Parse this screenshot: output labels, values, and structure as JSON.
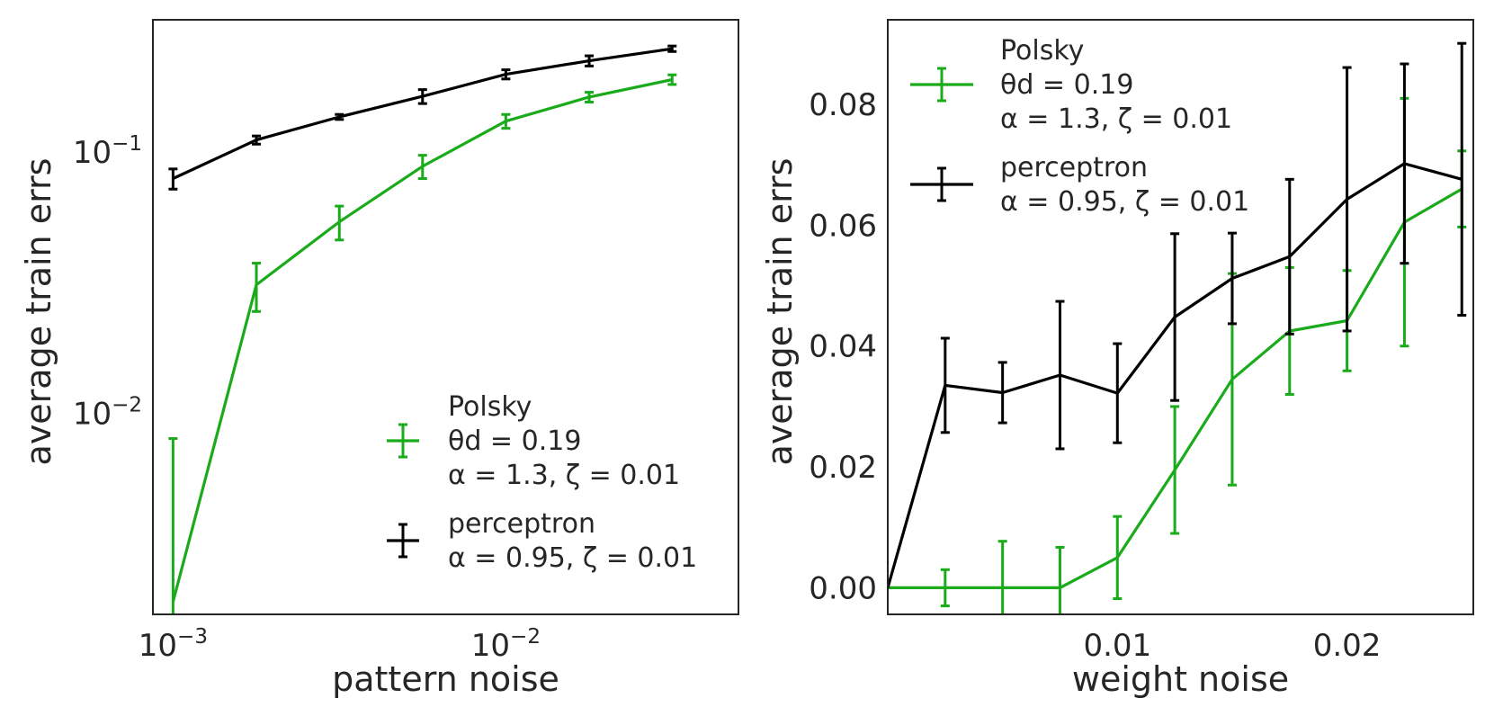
{
  "chart_data": [
    {
      "type": "line",
      "xscale": "log",
      "yscale": "log",
      "xlabel": "pattern noise",
      "ylabel": "average train errs",
      "xlim": [
        0.00087,
        0.05
      ],
      "ylim": [
        0.0017,
        0.32
      ],
      "xticks": [
        {
          "value": 0.001,
          "base": "10",
          "exp": "−3"
        },
        {
          "value": 0.01,
          "base": "10",
          "exp": "−2"
        }
      ],
      "yticks": [
        {
          "value": 0.01,
          "base": "10",
          "exp": "−2"
        },
        {
          "value": 0.1,
          "base": "10",
          "exp": "−1"
        }
      ],
      "legend_position": "lower-right",
      "series": [
        {
          "name": "Polsky",
          "color": "#1aab1a",
          "legend_lines": [
            "Polsky",
            "θd = 0.19",
            "α = 1.3, ζ = 0.01"
          ],
          "x": [
            0.001,
            0.00178,
            0.00316,
            0.00562,
            0.01,
            0.0178,
            0.0316
          ],
          "y": [
            0.0019,
            0.031,
            0.054,
            0.088,
            0.131,
            0.162,
            0.189
          ],
          "err": [
            0.0061,
            0.0065,
            0.008,
            0.009,
            0.008,
            0.007,
            0.008
          ]
        },
        {
          "name": "perceptron",
          "color": "#000000",
          "legend_lines": [
            "perceptron",
            "α = 0.95, ζ = 0.01"
          ],
          "x": [
            0.001,
            0.00178,
            0.00316,
            0.00562,
            0.01,
            0.0178,
            0.0316
          ],
          "y": [
            0.079,
            0.111,
            0.136,
            0.163,
            0.198,
            0.223,
            0.248
          ],
          "err": [
            0.007,
            0.004,
            0.003,
            0.01,
            0.008,
            0.01,
            0.006
          ]
        }
      ]
    },
    {
      "type": "line",
      "xscale": "linear",
      "yscale": "linear",
      "xlabel": "weight noise",
      "ylabel": "average train errs",
      "xlim": [
        0.0,
        0.0255
      ],
      "ylim": [
        -0.0044,
        0.094
      ],
      "xticks": [
        {
          "value": 0.01,
          "label": "0.01"
        },
        {
          "value": 0.02,
          "label": "0.02"
        }
      ],
      "yticks": [
        {
          "value": 0.0,
          "label": "0.00"
        },
        {
          "value": 0.02,
          "label": "0.02"
        },
        {
          "value": 0.04,
          "label": "0.04"
        },
        {
          "value": 0.06,
          "label": "0.06"
        },
        {
          "value": 0.08,
          "label": "0.08"
        }
      ],
      "legend_position": "upper-left",
      "series": [
        {
          "name": "Polsky",
          "color": "#1aab1a",
          "legend_lines": [
            "Polsky",
            "θd = 0.19",
            "α = 1.3, ζ = 0.01"
          ],
          "x": [
            0.0,
            0.0025,
            0.005,
            0.0075,
            0.01,
            0.0125,
            0.015,
            0.0175,
            0.02,
            0.0225,
            0.025
          ],
          "y": [
            0.0,
            0.0,
            0.0,
            0.0,
            0.005,
            0.0195,
            0.0345,
            0.0425,
            0.0442,
            0.0605,
            0.066
          ],
          "err": [
            0.0,
            0.003,
            0.0077,
            0.0067,
            0.0068,
            0.0105,
            0.0175,
            0.0105,
            0.0083,
            0.0205,
            0.0063
          ]
        },
        {
          "name": "perceptron",
          "color": "#000000",
          "legend_lines": [
            "perceptron",
            "α = 0.95, ζ = 0.01"
          ],
          "x": [
            0.0,
            0.0025,
            0.005,
            0.0075,
            0.01,
            0.0125,
            0.015,
            0.0175,
            0.02,
            0.0225,
            0.025
          ],
          "y": [
            0.0,
            0.0335,
            0.0323,
            0.0352,
            0.0322,
            0.0448,
            0.0512,
            0.0548,
            0.0643,
            0.0702,
            0.0676
          ],
          "err": [
            0.0,
            0.0078,
            0.005,
            0.0122,
            0.0082,
            0.0138,
            0.0075,
            0.0128,
            0.0218,
            0.0165,
            0.0225
          ]
        }
      ]
    }
  ]
}
